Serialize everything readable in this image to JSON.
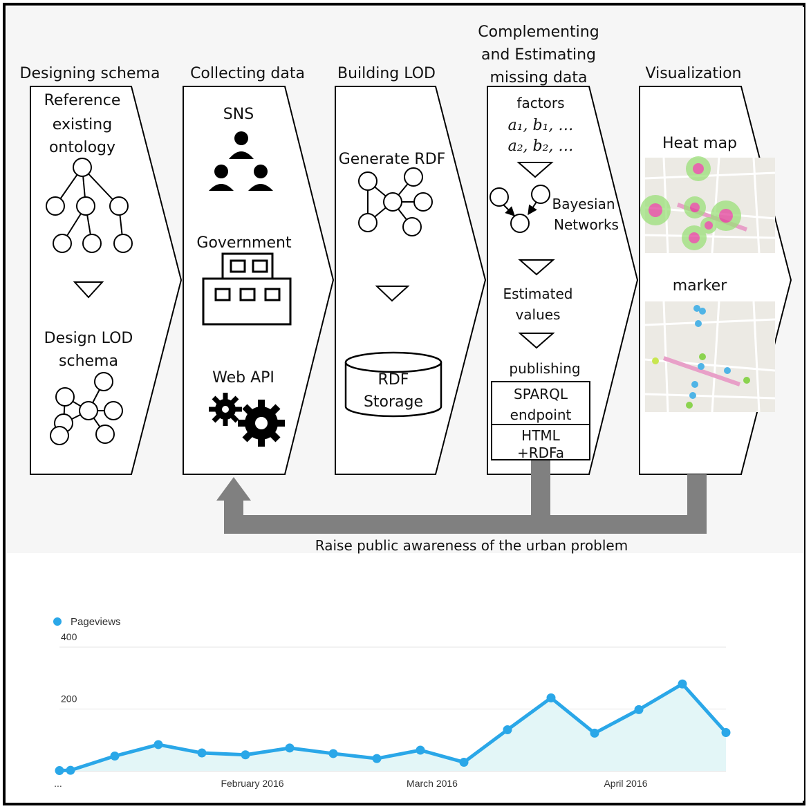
{
  "stages": [
    {
      "title": "Designing schema"
    },
    {
      "title": "Collecting data"
    },
    {
      "title": "Building LOD"
    },
    {
      "title_lines": [
        "Complementing",
        "and Estimating",
        "missing data"
      ]
    },
    {
      "title": "Visualization"
    }
  ],
  "schema": {
    "line1": "Reference",
    "line2": "existing",
    "line3": "ontology",
    "design_line1": "Design LOD",
    "design_line2": "schema"
  },
  "collecting": {
    "sns": "SNS",
    "government": "Government",
    "webapi": "Web API"
  },
  "building": {
    "generate": "Generate RDF",
    "storage_line1": "RDF",
    "storage_line2": "Storage"
  },
  "estimating": {
    "factors": "factors",
    "factor_row1": "a₁, b₁, …",
    "factor_row2": "a₂, b₂, …",
    "bayes_line1": "Bayesian",
    "bayes_line2": "Networks",
    "estimated_line1": "Estimated",
    "estimated_line2": "values",
    "publishing": "publishing",
    "sparql_line1": "SPARQL",
    "sparql_line2": "endpoint",
    "html_line1": "HTML",
    "html_line2": "+RDFa"
  },
  "visualization": {
    "heatmap": "Heat map",
    "marker": "marker"
  },
  "feedback": "Raise public awareness of the urban problem",
  "colors": {
    "arrow_gray": "#808080",
    "line_blue": "#2aa7e8",
    "area_fill": "#e3f6f7"
  },
  "chart_data": {
    "type": "area",
    "series": [
      {
        "name": "Pageviews",
        "values": [
          1,
          2,
          48,
          85,
          58,
          52,
          74,
          56,
          40,
          67,
          28,
          133,
          236,
          122,
          198,
          281,
          124
        ]
      }
    ],
    "x_tick_labels": [
      "...",
      "February 2016",
      "March 2016",
      "April 2016"
    ],
    "y_ticks": [
      200,
      400
    ],
    "ylim": [
      0,
      400
    ],
    "grid": true,
    "legend": "top-left"
  }
}
